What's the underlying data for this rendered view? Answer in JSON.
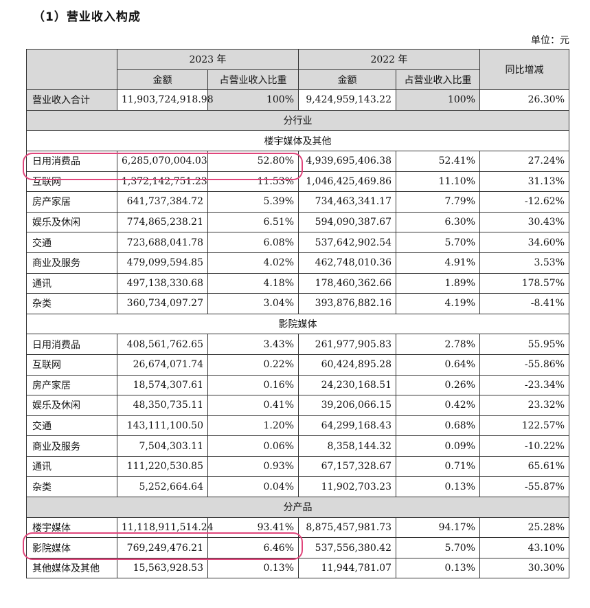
{
  "section_title": "（1）营业收入构成",
  "unit": "单位：元",
  "header": {
    "y2023": "2023 年",
    "y2022": "2022 年",
    "amount": "金额",
    "ratio": "占营业收入比重",
    "yoy": "同比增减"
  },
  "total": {
    "label": "营业收入合计",
    "a2023": "11,903,724,918.98",
    "r2023": "100%",
    "a2022": "9,424,959,143.22",
    "r2022": "100%",
    "yoy": "26.30%"
  },
  "by_industry_label": "分行业",
  "group1_label": "楼宇媒体及其他",
  "group1_rows": [
    {
      "label": "日用消费品",
      "a2023": "6,285,070,004.03",
      "r2023": "52.80%",
      "a2022": "4,939,695,406.38",
      "r2022": "52.41%",
      "yoy": "27.24%"
    },
    {
      "label": "互联网",
      "a2023": "1,372,142,751.23",
      "r2023": "11.53%",
      "a2022": "1,046,425,469.86",
      "r2022": "11.10%",
      "yoy": "31.13%"
    },
    {
      "label": "房产家居",
      "a2023": "641,737,384.72",
      "r2023": "5.39%",
      "a2022": "734,463,341.17",
      "r2022": "7.79%",
      "yoy": "-12.62%"
    },
    {
      "label": "娱乐及休闲",
      "a2023": "774,865,238.21",
      "r2023": "6.51%",
      "a2022": "594,090,387.67",
      "r2022": "6.30%",
      "yoy": "30.43%"
    },
    {
      "label": "交通",
      "a2023": "723,688,041.78",
      "r2023": "6.08%",
      "a2022": "537,642,902.54",
      "r2022": "5.70%",
      "yoy": "34.60%"
    },
    {
      "label": "商业及服务",
      "a2023": "479,099,594.85",
      "r2023": "4.02%",
      "a2022": "462,748,010.36",
      "r2022": "4.91%",
      "yoy": "3.53%"
    },
    {
      "label": "通讯",
      "a2023": "497,138,330.68",
      "r2023": "4.18%",
      "a2022": "178,460,362.66",
      "r2022": "1.89%",
      "yoy": "178.57%"
    },
    {
      "label": "杂类",
      "a2023": "360,734,097.27",
      "r2023": "3.04%",
      "a2022": "393,876,882.16",
      "r2022": "4.19%",
      "yoy": "-8.41%"
    }
  ],
  "group2_label": "影院媒体",
  "group2_rows": [
    {
      "label": "日用消费品",
      "a2023": "408,561,762.65",
      "r2023": "3.43%",
      "a2022": "261,977,905.83",
      "r2022": "2.78%",
      "yoy": "55.95%"
    },
    {
      "label": "互联网",
      "a2023": "26,674,071.74",
      "r2023": "0.22%",
      "a2022": "60,424,895.28",
      "r2022": "0.64%",
      "yoy": "-55.86%"
    },
    {
      "label": "房产家居",
      "a2023": "18,574,307.61",
      "r2023": "0.16%",
      "a2022": "24,230,168.51",
      "r2022": "0.26%",
      "yoy": "-23.34%"
    },
    {
      "label": "娱乐及休闲",
      "a2023": "48,350,735.11",
      "r2023": "0.41%",
      "a2022": "39,206,066.15",
      "r2022": "0.42%",
      "yoy": "23.32%"
    },
    {
      "label": "交通",
      "a2023": "143,111,100.50",
      "r2023": "1.20%",
      "a2022": "64,299,168.43",
      "r2022": "0.68%",
      "yoy": "122.57%"
    },
    {
      "label": "商业及服务",
      "a2023": "7,504,303.11",
      "r2023": "0.06%",
      "a2022": "8,358,144.32",
      "r2022": "0.09%",
      "yoy": "-10.22%"
    },
    {
      "label": "通讯",
      "a2023": "111,220,530.85",
      "r2023": "0.93%",
      "a2022": "67,157,328.67",
      "r2022": "0.71%",
      "yoy": "65.61%"
    },
    {
      "label": "杂类",
      "a2023": "5,252,664.64",
      "r2023": "0.04%",
      "a2022": "11,902,703.23",
      "r2022": "0.13%",
      "yoy": "-55.87%"
    }
  ],
  "by_product_label": "分产品",
  "product_rows": [
    {
      "label": "楼宇媒体",
      "a2023": "11,118,911,514.24",
      "r2023": "93.41%",
      "a2022": "8,875,457,981.73",
      "r2022": "94.17%",
      "yoy": "25.28%"
    },
    {
      "label": "影院媒体",
      "a2023": "769,249,476.21",
      "r2023": "6.46%",
      "a2022": "537,556,380.42",
      "r2022": "5.70%",
      "yoy": "43.10%"
    },
    {
      "label": "其他媒体及其他",
      "a2023": "15,563,928.53",
      "r2023": "0.13%",
      "a2022": "11,944,781.07",
      "r2022": "0.13%",
      "yoy": "30.30%"
    }
  ],
  "colors": {
    "highlight": "#e0457b",
    "header_bg": "#d9d9d9"
  }
}
